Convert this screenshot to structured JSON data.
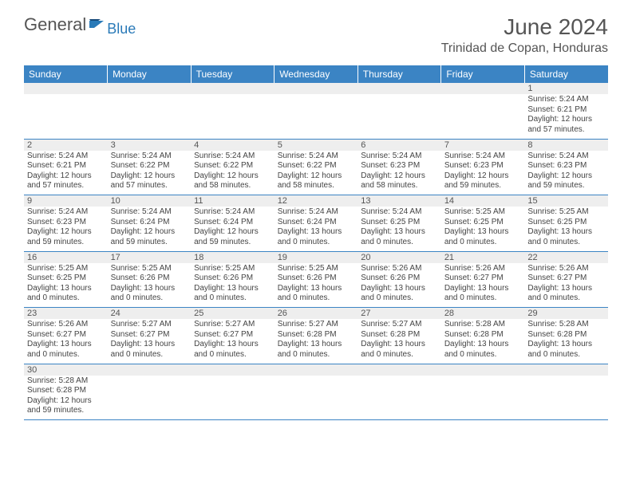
{
  "logo": {
    "general": "General",
    "blue": "Blue"
  },
  "title": "June 2024",
  "location": "Trinidad de Copan, Honduras",
  "colors": {
    "header_bg": "#3b84c4",
    "header_text": "#ffffff",
    "daynum_bg": "#eeeeee",
    "border": "#3b84c4",
    "text": "#444444",
    "title_text": "#555555",
    "logo_gray": "#555555",
    "logo_blue": "#2a7ab8"
  },
  "weekdays": [
    "Sunday",
    "Monday",
    "Tuesday",
    "Wednesday",
    "Thursday",
    "Friday",
    "Saturday"
  ],
  "month": {
    "year": 2024,
    "month": 6,
    "first_weekday_index": 6,
    "days_in_month": 30
  },
  "days": {
    "1": {
      "sunrise": "5:24 AM",
      "sunset": "6:21 PM",
      "daylight": "12 hours and 57 minutes."
    },
    "2": {
      "sunrise": "5:24 AM",
      "sunset": "6:21 PM",
      "daylight": "12 hours and 57 minutes."
    },
    "3": {
      "sunrise": "5:24 AM",
      "sunset": "6:22 PM",
      "daylight": "12 hours and 57 minutes."
    },
    "4": {
      "sunrise": "5:24 AM",
      "sunset": "6:22 PM",
      "daylight": "12 hours and 58 minutes."
    },
    "5": {
      "sunrise": "5:24 AM",
      "sunset": "6:22 PM",
      "daylight": "12 hours and 58 minutes."
    },
    "6": {
      "sunrise": "5:24 AM",
      "sunset": "6:23 PM",
      "daylight": "12 hours and 58 minutes."
    },
    "7": {
      "sunrise": "5:24 AM",
      "sunset": "6:23 PM",
      "daylight": "12 hours and 59 minutes."
    },
    "8": {
      "sunrise": "5:24 AM",
      "sunset": "6:23 PM",
      "daylight": "12 hours and 59 minutes."
    },
    "9": {
      "sunrise": "5:24 AM",
      "sunset": "6:23 PM",
      "daylight": "12 hours and 59 minutes."
    },
    "10": {
      "sunrise": "5:24 AM",
      "sunset": "6:24 PM",
      "daylight": "12 hours and 59 minutes."
    },
    "11": {
      "sunrise": "5:24 AM",
      "sunset": "6:24 PM",
      "daylight": "12 hours and 59 minutes."
    },
    "12": {
      "sunrise": "5:24 AM",
      "sunset": "6:24 PM",
      "daylight": "13 hours and 0 minutes."
    },
    "13": {
      "sunrise": "5:24 AM",
      "sunset": "6:25 PM",
      "daylight": "13 hours and 0 minutes."
    },
    "14": {
      "sunrise": "5:25 AM",
      "sunset": "6:25 PM",
      "daylight": "13 hours and 0 minutes."
    },
    "15": {
      "sunrise": "5:25 AM",
      "sunset": "6:25 PM",
      "daylight": "13 hours and 0 minutes."
    },
    "16": {
      "sunrise": "5:25 AM",
      "sunset": "6:25 PM",
      "daylight": "13 hours and 0 minutes."
    },
    "17": {
      "sunrise": "5:25 AM",
      "sunset": "6:26 PM",
      "daylight": "13 hours and 0 minutes."
    },
    "18": {
      "sunrise": "5:25 AM",
      "sunset": "6:26 PM",
      "daylight": "13 hours and 0 minutes."
    },
    "19": {
      "sunrise": "5:25 AM",
      "sunset": "6:26 PM",
      "daylight": "13 hours and 0 minutes."
    },
    "20": {
      "sunrise": "5:26 AM",
      "sunset": "6:26 PM",
      "daylight": "13 hours and 0 minutes."
    },
    "21": {
      "sunrise": "5:26 AM",
      "sunset": "6:27 PM",
      "daylight": "13 hours and 0 minutes."
    },
    "22": {
      "sunrise": "5:26 AM",
      "sunset": "6:27 PM",
      "daylight": "13 hours and 0 minutes."
    },
    "23": {
      "sunrise": "5:26 AM",
      "sunset": "6:27 PM",
      "daylight": "13 hours and 0 minutes."
    },
    "24": {
      "sunrise": "5:27 AM",
      "sunset": "6:27 PM",
      "daylight": "13 hours and 0 minutes."
    },
    "25": {
      "sunrise": "5:27 AM",
      "sunset": "6:27 PM",
      "daylight": "13 hours and 0 minutes."
    },
    "26": {
      "sunrise": "5:27 AM",
      "sunset": "6:28 PM",
      "daylight": "13 hours and 0 minutes."
    },
    "27": {
      "sunrise": "5:27 AM",
      "sunset": "6:28 PM",
      "daylight": "13 hours and 0 minutes."
    },
    "28": {
      "sunrise": "5:28 AM",
      "sunset": "6:28 PM",
      "daylight": "13 hours and 0 minutes."
    },
    "29": {
      "sunrise": "5:28 AM",
      "sunset": "6:28 PM",
      "daylight": "13 hours and 0 minutes."
    },
    "30": {
      "sunrise": "5:28 AM",
      "sunset": "6:28 PM",
      "daylight": "12 hours and 59 minutes."
    }
  },
  "labels": {
    "sunrise": "Sunrise:",
    "sunset": "Sunset:",
    "daylight": "Daylight:"
  }
}
